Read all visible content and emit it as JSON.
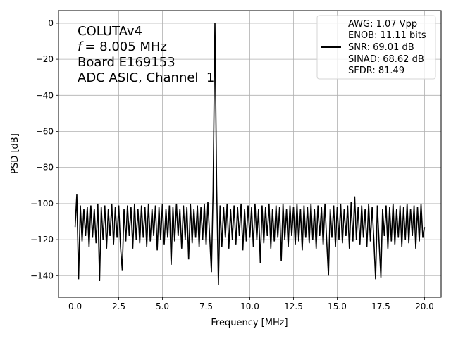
{
  "chart_data": {
    "type": "line",
    "title": "",
    "xlabel": "Frequency [MHz]",
    "ylabel": "PSD [dB]",
    "xlim": [
      -0.95,
      20.95
    ],
    "ylim": [
      -152,
      7
    ],
    "xticks": [
      "0.0",
      "2.5",
      "5.0",
      "7.5",
      "10.0",
      "12.5",
      "15.0",
      "17.5",
      "20.0"
    ],
    "xtick_values": [
      0,
      2.5,
      5,
      7.5,
      10,
      12.5,
      15,
      17.5,
      20
    ],
    "yticks": [
      "0",
      "−20",
      "−40",
      "−60",
      "−80",
      "−100",
      "−120",
      "−140"
    ],
    "ytick_values": [
      0,
      -20,
      -40,
      -60,
      -80,
      -100,
      -120,
      -140
    ],
    "grid": true,
    "line_color": "#000000",
    "grid_color": "#b0b0b0",
    "annotation": [
      "COLUTAv4",
      "= 8.005 MHz",
      "Board E169153",
      "ADC ASIC, Channel  1"
    ],
    "annotation_italic_prefix": "f",
    "legend_position": "top-right",
    "legend": [
      "AWG: 1.07 Vpp",
      "ENOB: 11.11 bits",
      "SNR: 69.01 dB",
      "SINAD: 68.62 dB",
      "SFDR: 81.49"
    ],
    "series": [
      {
        "x": [
          0,
          0.1,
          0.2,
          0.3,
          0.4,
          0.5,
          0.6,
          0.7,
          0.8,
          0.9,
          1,
          1.1,
          1.2,
          1.3,
          1.4,
          1.5,
          1.6,
          1.7,
          1.8,
          1.9,
          2,
          2.1,
          2.2,
          2.3,
          2.4,
          2.5,
          2.6,
          2.7,
          2.8,
          2.9,
          3,
          3.1,
          3.2,
          3.3,
          3.4,
          3.5,
          3.6,
          3.7,
          3.8,
          3.9,
          4,
          4.1,
          4.2,
          4.3,
          4.4,
          4.5,
          4.6,
          4.7,
          4.8,
          4.9,
          5,
          5.1,
          5.2,
          5.3,
          5.4,
          5.5,
          5.6,
          5.7,
          5.8,
          5.9,
          6,
          6.1,
          6.2,
          6.3,
          6.4,
          6.5,
          6.6,
          6.7,
          6.8,
          6.9,
          7,
          7.1,
          7.2,
          7.3,
          7.4,
          7.5,
          7.6,
          7.7,
          7.8,
          7.9,
          8.005,
          8.1,
          8.2,
          8.3,
          8.4,
          8.5,
          8.6,
          8.7,
          8.8,
          8.9,
          9,
          9.1,
          9.2,
          9.3,
          9.4,
          9.5,
          9.6,
          9.7,
          9.8,
          9.9,
          10,
          10.1,
          10.2,
          10.3,
          10.4,
          10.5,
          10.6,
          10.7,
          10.8,
          10.9,
          11,
          11.1,
          11.2,
          11.3,
          11.4,
          11.5,
          11.6,
          11.7,
          11.8,
          11.9,
          12,
          12.1,
          12.2,
          12.3,
          12.4,
          12.5,
          12.6,
          12.7,
          12.8,
          12.9,
          13,
          13.1,
          13.2,
          13.3,
          13.4,
          13.5,
          13.6,
          13.7,
          13.8,
          13.9,
          14,
          14.1,
          14.2,
          14.3,
          14.4,
          14.5,
          14.6,
          14.7,
          14.8,
          14.9,
          15,
          15.1,
          15.2,
          15.3,
          15.4,
          15.5,
          15.6,
          15.7,
          15.8,
          15.9,
          16,
          16.1,
          16.2,
          16.3,
          16.4,
          16.5,
          16.6,
          16.7,
          16.8,
          16.9,
          17,
          17.1,
          17.2,
          17.3,
          17.4,
          17.5,
          17.6,
          17.7,
          17.8,
          17.9,
          18,
          18.1,
          18.2,
          18.3,
          18.4,
          18.5,
          18.6,
          18.7,
          18.8,
          18.9,
          19,
          19.1,
          19.2,
          19.3,
          19.4,
          19.5,
          19.6,
          19.7,
          19.8,
          19.9,
          20
        ],
        "y": [
          -113,
          -95,
          -142,
          -101,
          -121,
          -103,
          -118,
          -102,
          -124,
          -101,
          -119,
          -103,
          -122,
          -100,
          -143,
          -102,
          -120,
          -101,
          -125,
          -103,
          -118,
          -100,
          -123,
          -102,
          -119,
          -101,
          -124,
          -137,
          -103,
          -121,
          -101,
          -118,
          -102,
          -125,
          -100,
          -120,
          -103,
          -122,
          -101,
          -119,
          -102,
          -124,
          -100,
          -121,
          -103,
          -118,
          -101,
          -126,
          -102,
          -120,
          -100,
          -123,
          -103,
          -119,
          -101,
          -134,
          -102,
          -121,
          -100,
          -118,
          -103,
          -125,
          -101,
          -120,
          -102,
          -131,
          -100,
          -122,
          -103,
          -119,
          -101,
          -124,
          -102,
          -120,
          -100,
          -123,
          -99,
          -118,
          -138,
          -93,
          0,
          -90,
          -145,
          -101,
          -124,
          -102,
          -119,
          -100,
          -125,
          -103,
          -120,
          -101,
          -123,
          -102,
          -118,
          -100,
          -126,
          -103,
          -121,
          -101,
          -119,
          -102,
          -124,
          -100,
          -120,
          -103,
          -133,
          -101,
          -122,
          -102,
          -118,
          -100,
          -125,
          -103,
          -121,
          -101,
          -119,
          -102,
          -132,
          -100,
          -120,
          -103,
          -124,
          -101,
          -118,
          -102,
          -123,
          -100,
          -121,
          -103,
          -126,
          -101,
          -119,
          -102,
          -122,
          -100,
          -120,
          -103,
          -125,
          -101,
          -118,
          -102,
          -123,
          -100,
          -121,
          -140,
          -103,
          -119,
          -101,
          -124,
          -102,
          -120,
          -100,
          -122,
          -103,
          -118,
          -101,
          -125,
          -99,
          -121,
          -96,
          -120,
          -102,
          -123,
          -101,
          -119,
          -103,
          -124,
          -100,
          -121,
          -102,
          -120,
          -142,
          -101,
          -122,
          -141,
          -103,
          -118,
          -101,
          -125,
          -102,
          -121,
          -100,
          -123,
          -103,
          -119,
          -101,
          -124,
          -102,
          -120,
          -100,
          -122,
          -103,
          -118,
          -101,
          -125,
          -102,
          -121,
          -100,
          -119,
          -113
        ]
      }
    ]
  }
}
